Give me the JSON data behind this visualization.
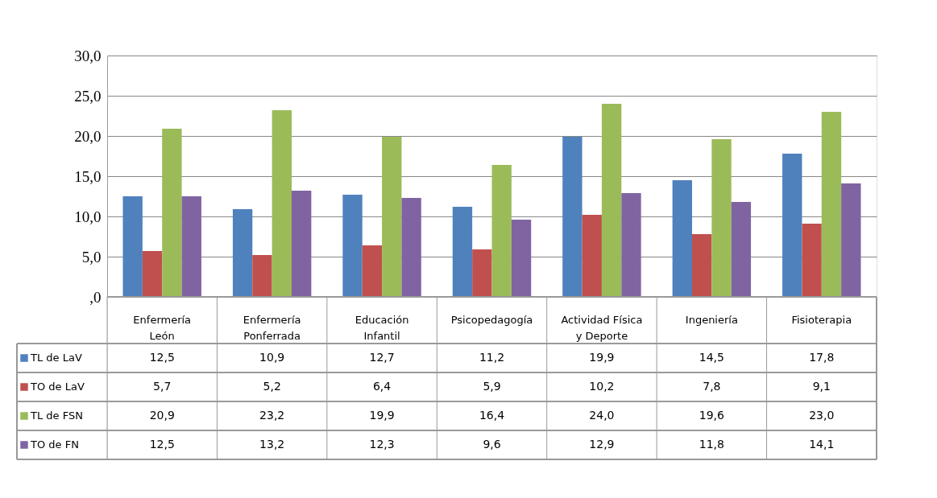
{
  "chart_data": {
    "type": "bar",
    "categories": [
      "Enfermería\nLeón",
      "Enfermería\nPonferrada",
      "Educación\nInfantil",
      "Psicopedagogía",
      "Actividad Física\ny Deporte",
      "Ingeniería",
      "Fisioterapia"
    ],
    "series": [
      {
        "name": "TL de LaV",
        "color": "#4f81bd",
        "values": [
          12.5,
          10.9,
          12.7,
          11.2,
          19.9,
          14.5,
          17.8
        ],
        "value_labels": [
          "12,5",
          "10,9",
          "12,7",
          "11,2",
          "19,9",
          "14,5",
          "17,8"
        ]
      },
      {
        "name": "TO de LaV",
        "color": "#c0504d",
        "values": [
          5.7,
          5.2,
          6.4,
          5.9,
          10.2,
          7.8,
          9.1
        ],
        "value_labels": [
          "5,7",
          "5,2",
          "6,4",
          "5,9",
          "10,2",
          "7,8",
          "9,1"
        ]
      },
      {
        "name": "TL de FSN",
        "color": "#9bbb59",
        "values": [
          20.9,
          23.2,
          19.9,
          16.4,
          24.0,
          19.6,
          23.0
        ],
        "value_labels": [
          "20,9",
          "23,2",
          "19,9",
          "16,4",
          "24,0",
          "19,6",
          "23,0"
        ]
      },
      {
        "name": "TO de FN",
        "color": "#8064a2",
        "values": [
          12.5,
          13.2,
          12.3,
          9.6,
          12.9,
          11.8,
          14.1
        ],
        "value_labels": [
          "12,5",
          "13,2",
          "12,3",
          "9,6",
          "12,9",
          "11,8",
          "14,1"
        ]
      }
    ],
    "ylim": [
      0,
      30
    ],
    "yticks": [
      {
        "value": 0,
        "label": ",0"
      },
      {
        "value": 5,
        "label": "5,0"
      },
      {
        "value": 10,
        "label": "10,0"
      },
      {
        "value": 15,
        "label": "15,0"
      },
      {
        "value": 20,
        "label": "20,0"
      },
      {
        "value": 25,
        "label": "25,0"
      },
      {
        "value": 30,
        "label": "30,0"
      }
    ],
    "grid": "y",
    "legend": "bottom"
  }
}
